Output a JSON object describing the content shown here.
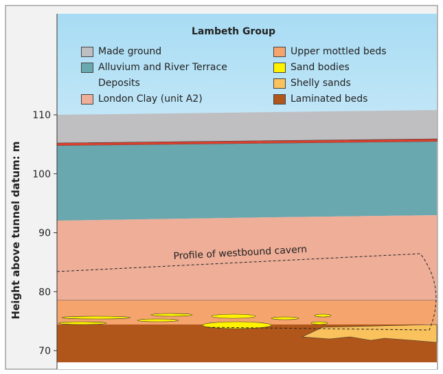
{
  "axis": {
    "label": "Height above tunnel datum: m",
    "ticks": [
      70,
      80,
      90,
      100,
      110
    ]
  },
  "legend": {
    "title": "Lambeth Group",
    "items": [
      {
        "label": "Made ground",
        "color": "#bfbfc2"
      },
      {
        "label": "Alluvium and River Terrace Deposits",
        "color": "#6aa8b0"
      },
      {
        "label": "London Clay (unit A2)",
        "color": "#eeae98"
      },
      {
        "label": "Upper mottled beds",
        "color": "#f5a46e"
      },
      {
        "label": "Sand bodies",
        "color": "#fff200"
      },
      {
        "label": "Shelly sands",
        "color": "#f9c25c"
      },
      {
        "label": "Laminated beds",
        "color": "#b0561a"
      }
    ]
  },
  "annotation": "Profile of westbound cavern"
}
